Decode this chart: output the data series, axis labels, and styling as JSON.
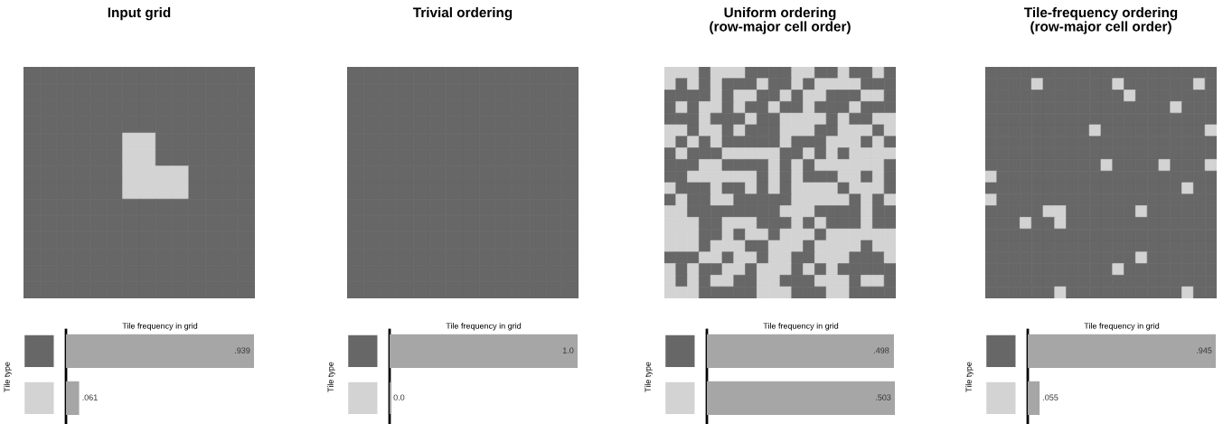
{
  "chart_data": [
    {
      "type": "bar",
      "title": "Input grid",
      "orientation": "horizontal",
      "xlabel": "Tile frequency in grid",
      "ylabel": "Tile type",
      "categories": [
        null,
        null
      ],
      "values": [
        0.939,
        0.061
      ],
      "value_labels": [
        ".939",
        ".061"
      ],
      "color": "#a6a6a6",
      "tick_labels": false
    },
    {
      "type": "bar",
      "title": "Trivial ordering",
      "orientation": "horizontal",
      "xlabel": "Tile frequency in grid",
      "ylabel": "Tile type",
      "categories": [
        null,
        null
      ],
      "values": [
        1.0,
        0.0
      ],
      "value_labels": [
        "1.0",
        "0.0"
      ],
      "color": "#a6a6a6",
      "tick_labels": false
    },
    {
      "type": "bar",
      "title": "Uniform ordering\n(row-major cell order)",
      "orientation": "horizontal",
      "xlabel": "Tile frequency in grid",
      "ylabel": "Tile type",
      "categories": [
        null,
        null
      ],
      "values": [
        0.498,
        0.503
      ],
      "value_labels": [
        ".498",
        ".503"
      ],
      "color": "#a6a6a6",
      "tick_labels": false
    },
    {
      "type": "bar",
      "title": "Tile-frequency ordering\n(row-major cell order)",
      "orientation": "horizontal",
      "xlabel": "Tile frequency in grid",
      "ylabel": "Tile type",
      "categories": [
        null,
        null
      ],
      "values": [
        0.945,
        0.055
      ],
      "value_labels": [
        ".945",
        ".055"
      ],
      "color": "#a6a6a6",
      "tick_labels": false
    }
  ]
}
